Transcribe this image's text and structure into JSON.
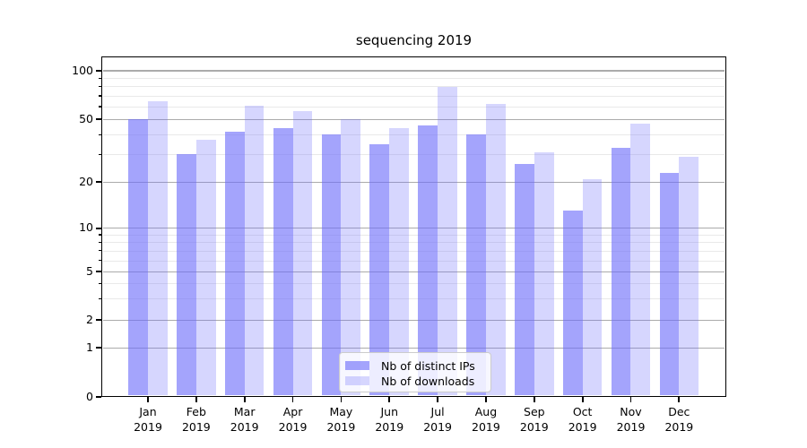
{
  "chart_data": {
    "type": "bar",
    "title": "sequencing 2019",
    "x_month_labels": [
      "Jan",
      "Feb",
      "Mar",
      "Apr",
      "May",
      "Jun",
      "Jul",
      "Aug",
      "Sep",
      "Oct",
      "Nov",
      "Dec"
    ],
    "x_year_label": "2019",
    "categories": [
      "Jan 2019",
      "Feb 2019",
      "Mar 2019",
      "Apr 2019",
      "May 2019",
      "Jun 2019",
      "Jul 2019",
      "Aug 2019",
      "Sep 2019",
      "Oct 2019",
      "Nov 2019",
      "Dec 2019"
    ],
    "series": [
      {
        "name": "Nb of distinct IPs",
        "color": "rgba(108,108,250,0.62)",
        "values": [
          50,
          30,
          42,
          44,
          40,
          35,
          46,
          40,
          26,
          13,
          33,
          23
        ]
      },
      {
        "name": "Nb of downloads",
        "color": "rgba(108,108,250,0.28)",
        "values": [
          65,
          37,
          61,
          56,
          50,
          44,
          79,
          62,
          31,
          21,
          47,
          29
        ]
      }
    ],
    "yscale": "symlog",
    "ylim": [
      0,
      100
    ],
    "ytick_labels": [
      "100",
      "50",
      "20",
      "10",
      "5",
      "2",
      "1",
      "0"
    ],
    "ytick_values": [
      100,
      50,
      20,
      10,
      5,
      2,
      1,
      0
    ],
    "minor_ytick_values": [
      90,
      80,
      70,
      60,
      40,
      30,
      9,
      8,
      7,
      6,
      4,
      3
    ],
    "grid": "on",
    "legend_position": "lower center",
    "colors": {
      "bar_dark_on_white": "#a8a8f8",
      "bar_light_on_white": "#d9d9f9",
      "grid_major": "#ababab",
      "grid_minor": "#e9e9e9",
      "axis": "#000000"
    }
  }
}
